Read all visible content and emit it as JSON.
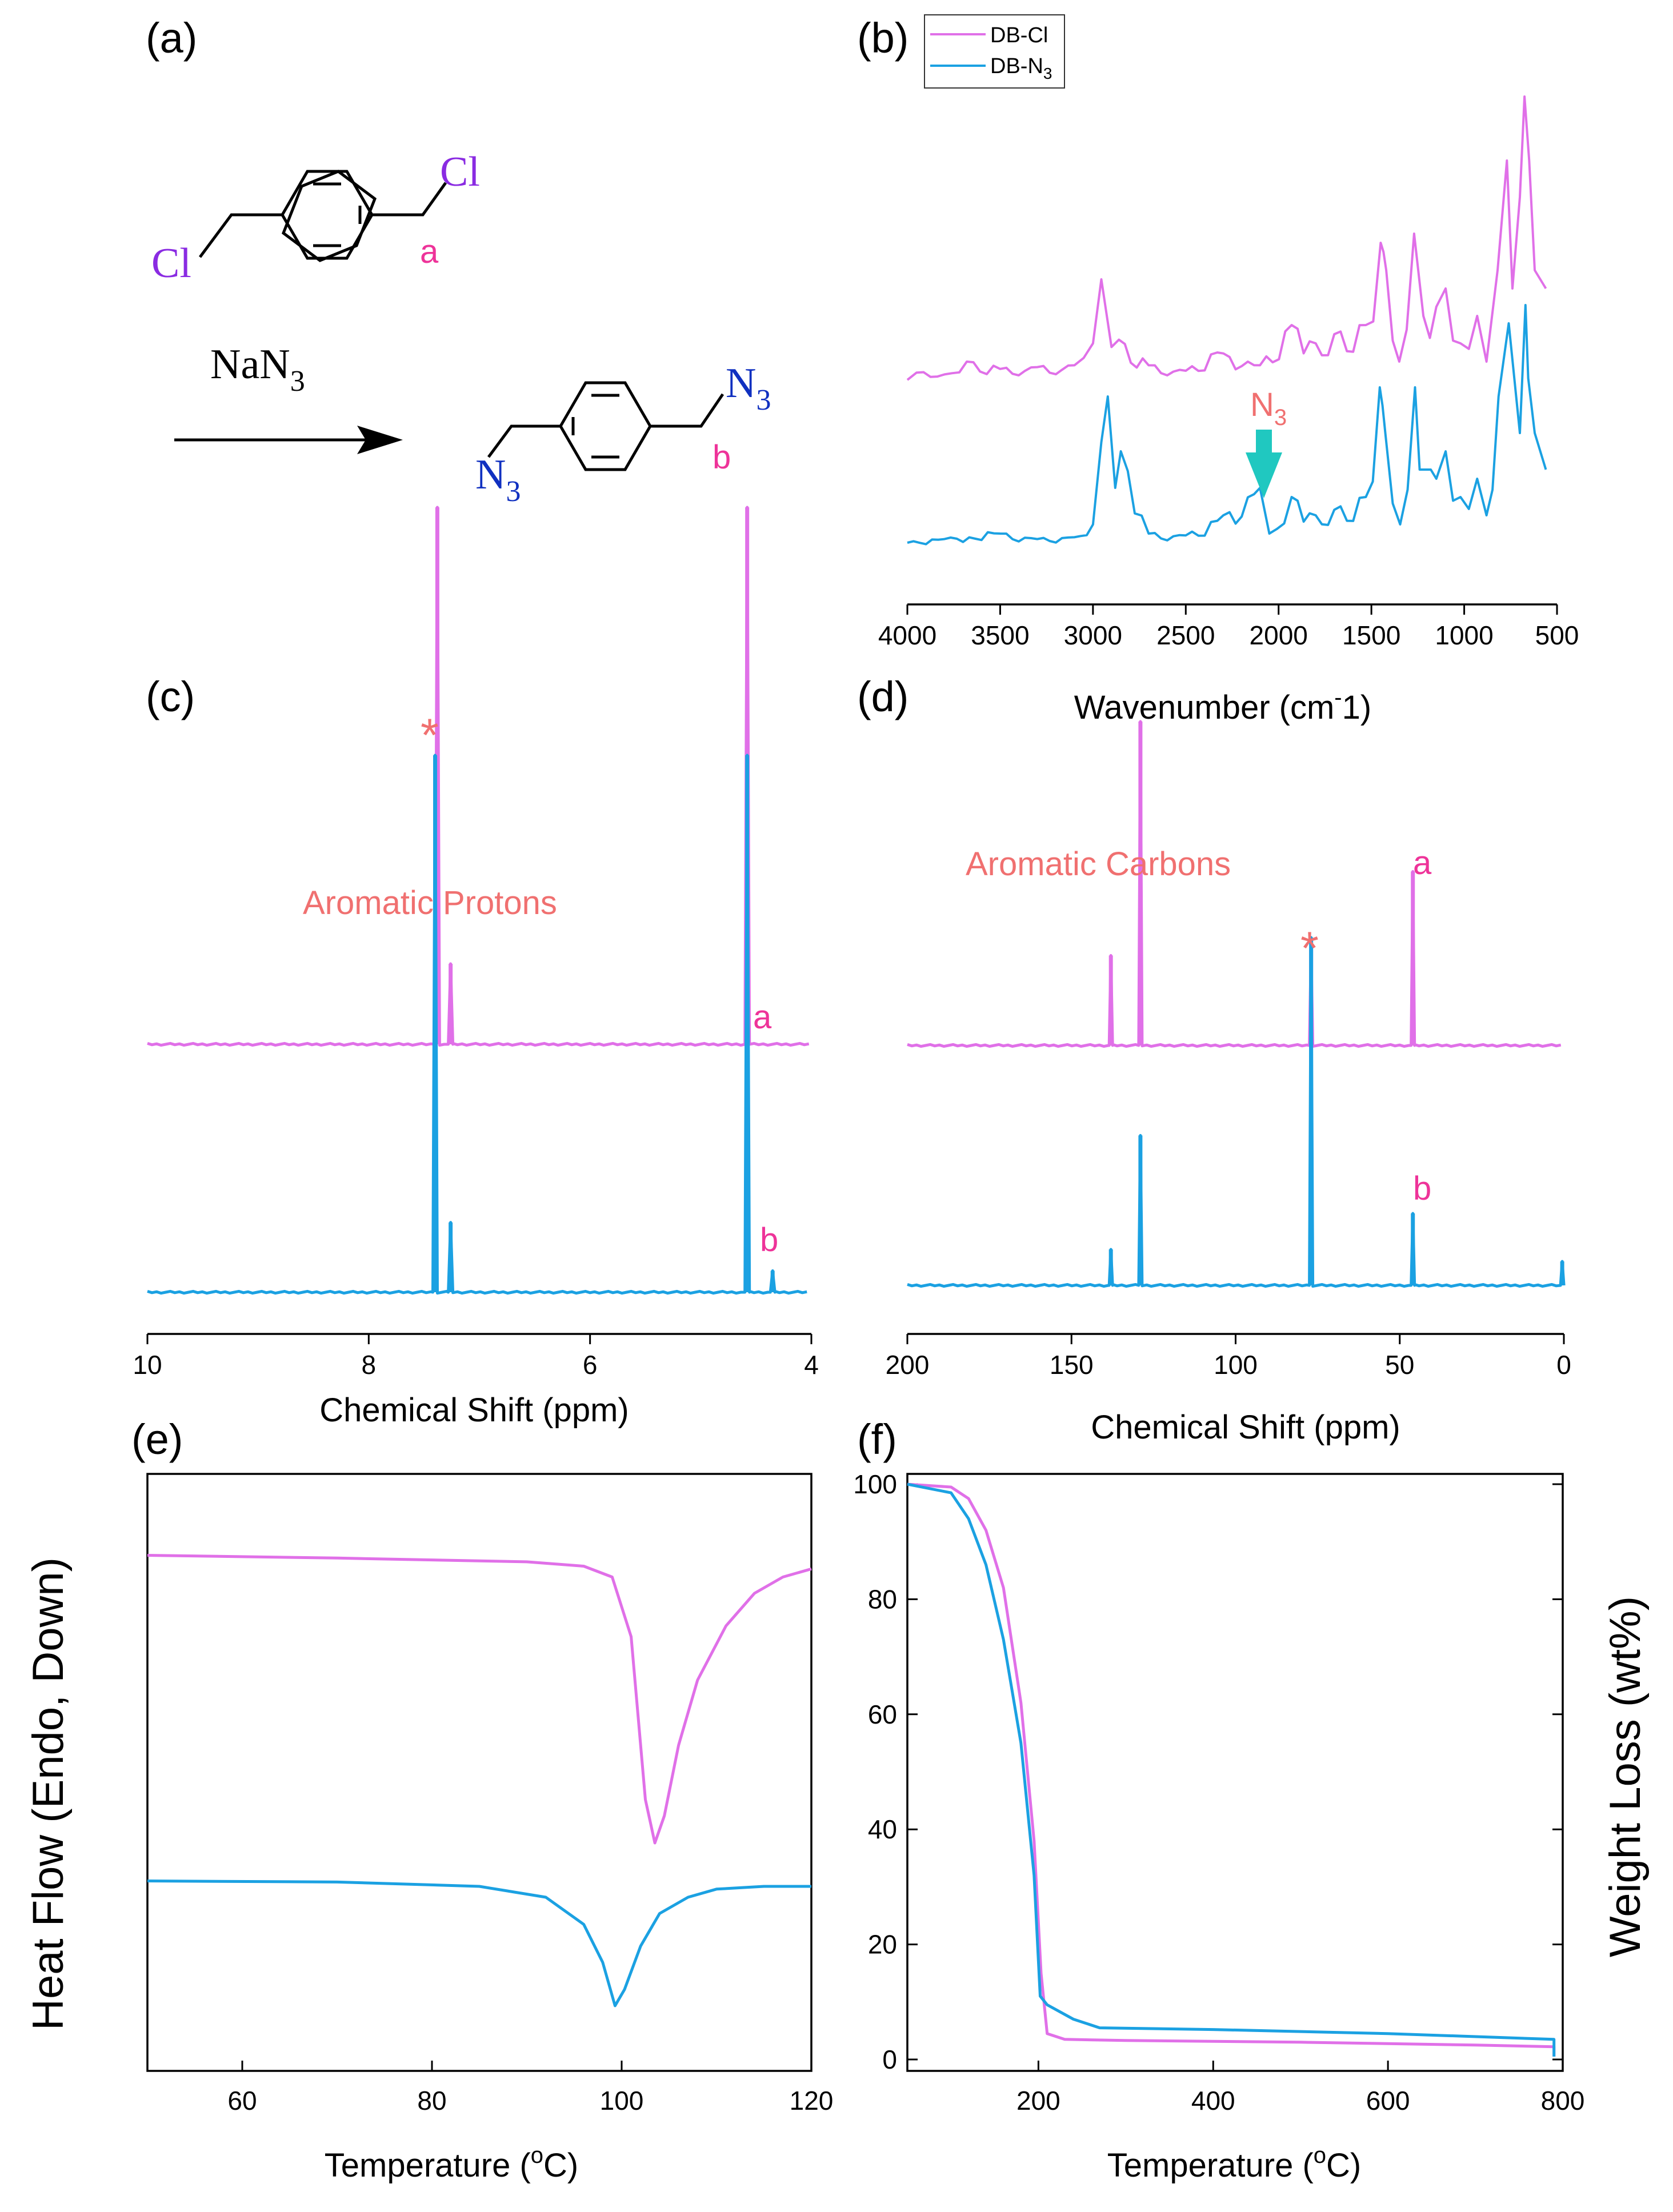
{
  "colors": {
    "magenta": "#e070e8",
    "blue": "#1ba1e2",
    "label_red": "#f07070",
    "label_pink": "#ee3399",
    "arrow": "#20c8c0",
    "chem_purple": "#8a2be2",
    "chem_blue": "#1030c0"
  },
  "panel_a": {
    "label": "(a)",
    "reactant_cl_top": "Cl",
    "reactant_cl_bottom": "Cl",
    "label_a": "a",
    "reagent": "NaN",
    "reagent_sub": "3",
    "product_n_top": "N",
    "product_n_top_sub": "3",
    "product_n_bottom": "N",
    "product_n_bottom_sub": "3",
    "label_b": "b"
  },
  "chart_data": [
    {
      "id": "b",
      "panel_label": "(b)",
      "type": "line",
      "title": "",
      "xlabel": "Wavenumber (cm-1)",
      "xlabel_main": "Wavenumber (cm",
      "xlabel_sup": "-",
      "xlabel_tail": "1)",
      "ylabel": "",
      "xlim": [
        4000,
        500
      ],
      "xticks": [
        "4000",
        "3500",
        "3000",
        "2500",
        "2000",
        "1500",
        "1000",
        "500"
      ],
      "legend": [
        {
          "name": "DB-Cl",
          "text": "DB-Cl",
          "color": "#e070e8"
        },
        {
          "name": "DB-N3",
          "text": "DB-N",
          "sub": "3",
          "color": "#1ba1e2"
        }
      ],
      "legend_position": "top-left",
      "annotation": {
        "text": "N",
        "sub": "3",
        "x": 2100
      },
      "series": [
        {
          "name": "DB-Cl",
          "baseline": 0.58,
          "x": [
            4000,
            3950,
            3800,
            3680,
            3500,
            3300,
            3100,
            3050,
            3000,
            2955,
            2900,
            2860,
            2700,
            2500,
            2330,
            2100,
            1930,
            1800,
            1700,
            1530,
            1450,
            1435,
            1420,
            1350,
            1270,
            1220,
            1150,
            1100,
            1020,
            930,
            880,
            820,
            770,
            740,
            700,
            675,
            650,
            620,
            560
          ],
          "y": [
            0.0,
            0.04,
            0.03,
            0.1,
            0.06,
            0.07,
            0.08,
            0.12,
            0.2,
            0.55,
            0.18,
            0.22,
            0.08,
            0.05,
            0.15,
            0.08,
            0.3,
            0.2,
            0.25,
            0.3,
            0.75,
            0.7,
            0.6,
            0.1,
            0.8,
            0.35,
            0.4,
            0.5,
            0.2,
            0.35,
            0.1,
            0.6,
            1.2,
            0.5,
            1.0,
            1.55,
            1.2,
            0.6,
            0.5
          ]
        },
        {
          "name": "DB-N3",
          "baseline": 0.22,
          "x": [
            4000,
            3800,
            3500,
            3300,
            3100,
            3000,
            2955,
            2920,
            2880,
            2850,
            2700,
            2500,
            2330,
            2100,
            2050,
            1930,
            1800,
            1700,
            1530,
            1455,
            1440,
            1425,
            1345,
            1265,
            1240,
            1180,
            1150,
            1100,
            1020,
            930,
            880,
            815,
            760,
            700,
            670,
            655,
            620,
            560
          ],
          "y": [
            0.0,
            0.02,
            0.05,
            0.02,
            0.03,
            0.1,
            0.55,
            0.8,
            0.3,
            0.5,
            0.05,
            0.04,
            0.12,
            0.3,
            0.05,
            0.25,
            0.15,
            0.18,
            0.25,
            0.85,
            0.75,
            0.6,
            0.1,
            0.85,
            0.4,
            0.4,
            0.35,
            0.5,
            0.25,
            0.35,
            0.15,
            0.8,
            1.2,
            0.6,
            1.3,
            0.9,
            0.6,
            0.4
          ]
        }
      ]
    },
    {
      "id": "c",
      "panel_label": "(c)",
      "type": "line",
      "title": "",
      "xlabel": "Chemical Shift (ppm)",
      "ylabel": "",
      "xlim": [
        10,
        4
      ],
      "xticks": [
        "10",
        "8",
        "6",
        "4"
      ],
      "annotations": [
        {
          "text": "Aromatic Protons",
          "color": "#f07070"
        },
        {
          "text": "*",
          "x": 7.4,
          "color": "#f07070"
        },
        {
          "text": "a",
          "x": 4.4,
          "color": "#ee3399"
        },
        {
          "text": "b",
          "x": 4.3,
          "color": "#ee3399"
        }
      ],
      "series": [
        {
          "name": "DB-Cl",
          "peaks": [
            {
              "x": 7.38,
              "height": 1.0
            },
            {
              "x": 7.26,
              "height": 0.15
            },
            {
              "x": 4.58,
              "height": 1.0
            }
          ]
        },
        {
          "name": "DB-N3",
          "peaks": [
            {
              "x": 7.4,
              "height": 1.0
            },
            {
              "x": 7.26,
              "height": 0.13
            },
            {
              "x": 4.58,
              "height": 1.0
            },
            {
              "x": 4.35,
              "height": 0.04
            }
          ]
        }
      ]
    },
    {
      "id": "d",
      "panel_label": "(d)",
      "type": "line",
      "title": "",
      "xlabel": "Chemical Shift (ppm)",
      "ylabel": "",
      "xlim": [
        200,
        0
      ],
      "xticks": [
        "200",
        "150",
        "100",
        "50",
        "0"
      ],
      "annotations": [
        {
          "text": "Aromatic Carbons",
          "color": "#f07070"
        },
        {
          "text": "*",
          "x": 77,
          "color": "#f07070"
        },
        {
          "text": "a",
          "x": 46,
          "color": "#ee3399"
        },
        {
          "text": "b",
          "x": 46,
          "color": "#ee3399"
        }
      ],
      "series": [
        {
          "name": "DB-Cl",
          "peaks": [
            {
              "x": 138,
              "height": 0.15
            },
            {
              "x": 129,
              "height": 0.54
            },
            {
              "x": 77,
              "height": 0.16
            },
            {
              "x": 46,
              "height": 0.29
            }
          ]
        },
        {
          "name": "DB-N3",
          "peaks": [
            {
              "x": 138,
              "height": 0.06
            },
            {
              "x": 129,
              "height": 0.25
            },
            {
              "x": 77,
              "height": 0.58
            },
            {
              "x": 46,
              "height": 0.12
            },
            {
              "x": 0.5,
              "height": 0.04
            }
          ]
        }
      ]
    },
    {
      "id": "e",
      "panel_label": "(e)",
      "type": "line",
      "title": "",
      "xlabel": "Temperature (oC)",
      "xlabel_main": "Temperature (",
      "xlabel_sup": "o",
      "xlabel_tail": "C)",
      "ylabel": "Heat Flow (Endo, Down)",
      "xlim": [
        50,
        120
      ],
      "xticks": [
        "60",
        "80",
        "100",
        "120"
      ],
      "series": [
        {
          "name": "DB-Cl",
          "x": [
            50,
            70,
            90,
            96,
            99,
            101,
            102.5,
            103.5,
            104.5,
            106,
            108,
            111,
            114,
            117,
            120
          ],
          "y": [
            0.95,
            0.945,
            0.938,
            0.93,
            0.91,
            0.8,
            0.5,
            0.42,
            0.47,
            0.6,
            0.72,
            0.82,
            0.88,
            0.91,
            0.925
          ]
        },
        {
          "name": "DB-N3",
          "x": [
            50,
            70,
            85,
            92,
            96,
            98,
            99.3,
            100.3,
            102,
            104,
            107,
            110,
            115,
            120
          ],
          "y": [
            0.35,
            0.348,
            0.34,
            0.32,
            0.27,
            0.2,
            0.12,
            0.15,
            0.23,
            0.29,
            0.32,
            0.335,
            0.34,
            0.34
          ]
        }
      ]
    },
    {
      "id": "f",
      "panel_label": "(f)",
      "type": "line",
      "title": "",
      "xlabel": "Temperature (oC)",
      "xlabel_main": "Temperature (",
      "xlabel_sup": "o",
      "xlabel_tail": "C)",
      "ylabel": "Weight Loss (wt%)",
      "xlim": [
        50,
        800
      ],
      "ylim": [
        0,
        100
      ],
      "xticks": [
        "200",
        "400",
        "600",
        "800"
      ],
      "yticks": [
        "0",
        "20",
        "40",
        "60",
        "80",
        "100"
      ],
      "series": [
        {
          "name": "DB-Cl",
          "x": [
            50,
            100,
            120,
            140,
            160,
            180,
            195,
            203,
            210,
            230,
            300,
            500,
            700,
            790,
            790
          ],
          "y": [
            100,
            99.5,
            97.5,
            92,
            82,
            62,
            38,
            15,
            4.5,
            3.5,
            3.3,
            3.0,
            2.5,
            2.2,
            0.5
          ]
        },
        {
          "name": "DB-N3",
          "x": [
            50,
            100,
            120,
            140,
            160,
            180,
            195,
            202,
            210,
            240,
            270,
            400,
            600,
            790,
            790
          ],
          "y": [
            100,
            98.5,
            94,
            86,
            73,
            55,
            32,
            11,
            9.5,
            7,
            5.5,
            5.2,
            4.5,
            3.5,
            0.5
          ]
        }
      ]
    }
  ]
}
